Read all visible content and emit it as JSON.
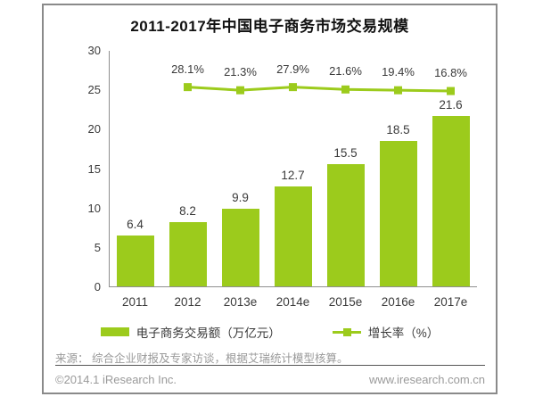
{
  "title": "2011-2017年中国电子商务市场交易规模",
  "chart_data": {
    "type": "bar",
    "subtype": "bar-line-combo",
    "title": "2011-2017年中国电子商务市场交易规模",
    "categories": [
      "2011",
      "2012",
      "2013e",
      "2014e",
      "2015e",
      "2016e",
      "2017e"
    ],
    "series": [
      {
        "name": "电子商务交易额（万亿元）",
        "type": "bar",
        "values": [
          6.4,
          8.2,
          9.9,
          12.7,
          15.5,
          18.5,
          21.6
        ],
        "value_labels": [
          "6.4",
          "8.2",
          "9.9",
          "12.7",
          "15.5",
          "18.5",
          "21.6"
        ]
      },
      {
        "name": "增长率（%）",
        "type": "line",
        "values": [
          null,
          28.1,
          21.3,
          27.9,
          21.6,
          19.4,
          16.8
        ],
        "value_labels": [
          "",
          "28.1%",
          "21.3%",
          "27.9%",
          "21.6%",
          "19.4%",
          "16.8%"
        ],
        "visual_y_primary_axis": [
          null,
          25.4,
          25.0,
          25.4,
          25.1,
          25.0,
          24.9
        ]
      }
    ],
    "xlabel": "",
    "ylabel": "",
    "ylim": [
      0,
      30
    ],
    "y_ticks": [
      30,
      25,
      20,
      15,
      10,
      5,
      0
    ],
    "grid": false,
    "legend_position": "bottom"
  },
  "footer": {
    "source": "来源： 综合企业财报及专家访谈，根据艾瑞统计模型核算。",
    "copyright": "©2014.1 iResearch Inc.",
    "website": "www.iresearch.com.cn"
  },
  "colors": {
    "accent_green": "#9CCB1C",
    "frame_border": "#8A8A8A",
    "axis_line": "#8F8F8F",
    "text_dark": "#111111",
    "text_label": "#3A3A3A",
    "text_muted": "#9A9A9A",
    "divider": "#565656",
    "background": "#FFFFFF"
  }
}
